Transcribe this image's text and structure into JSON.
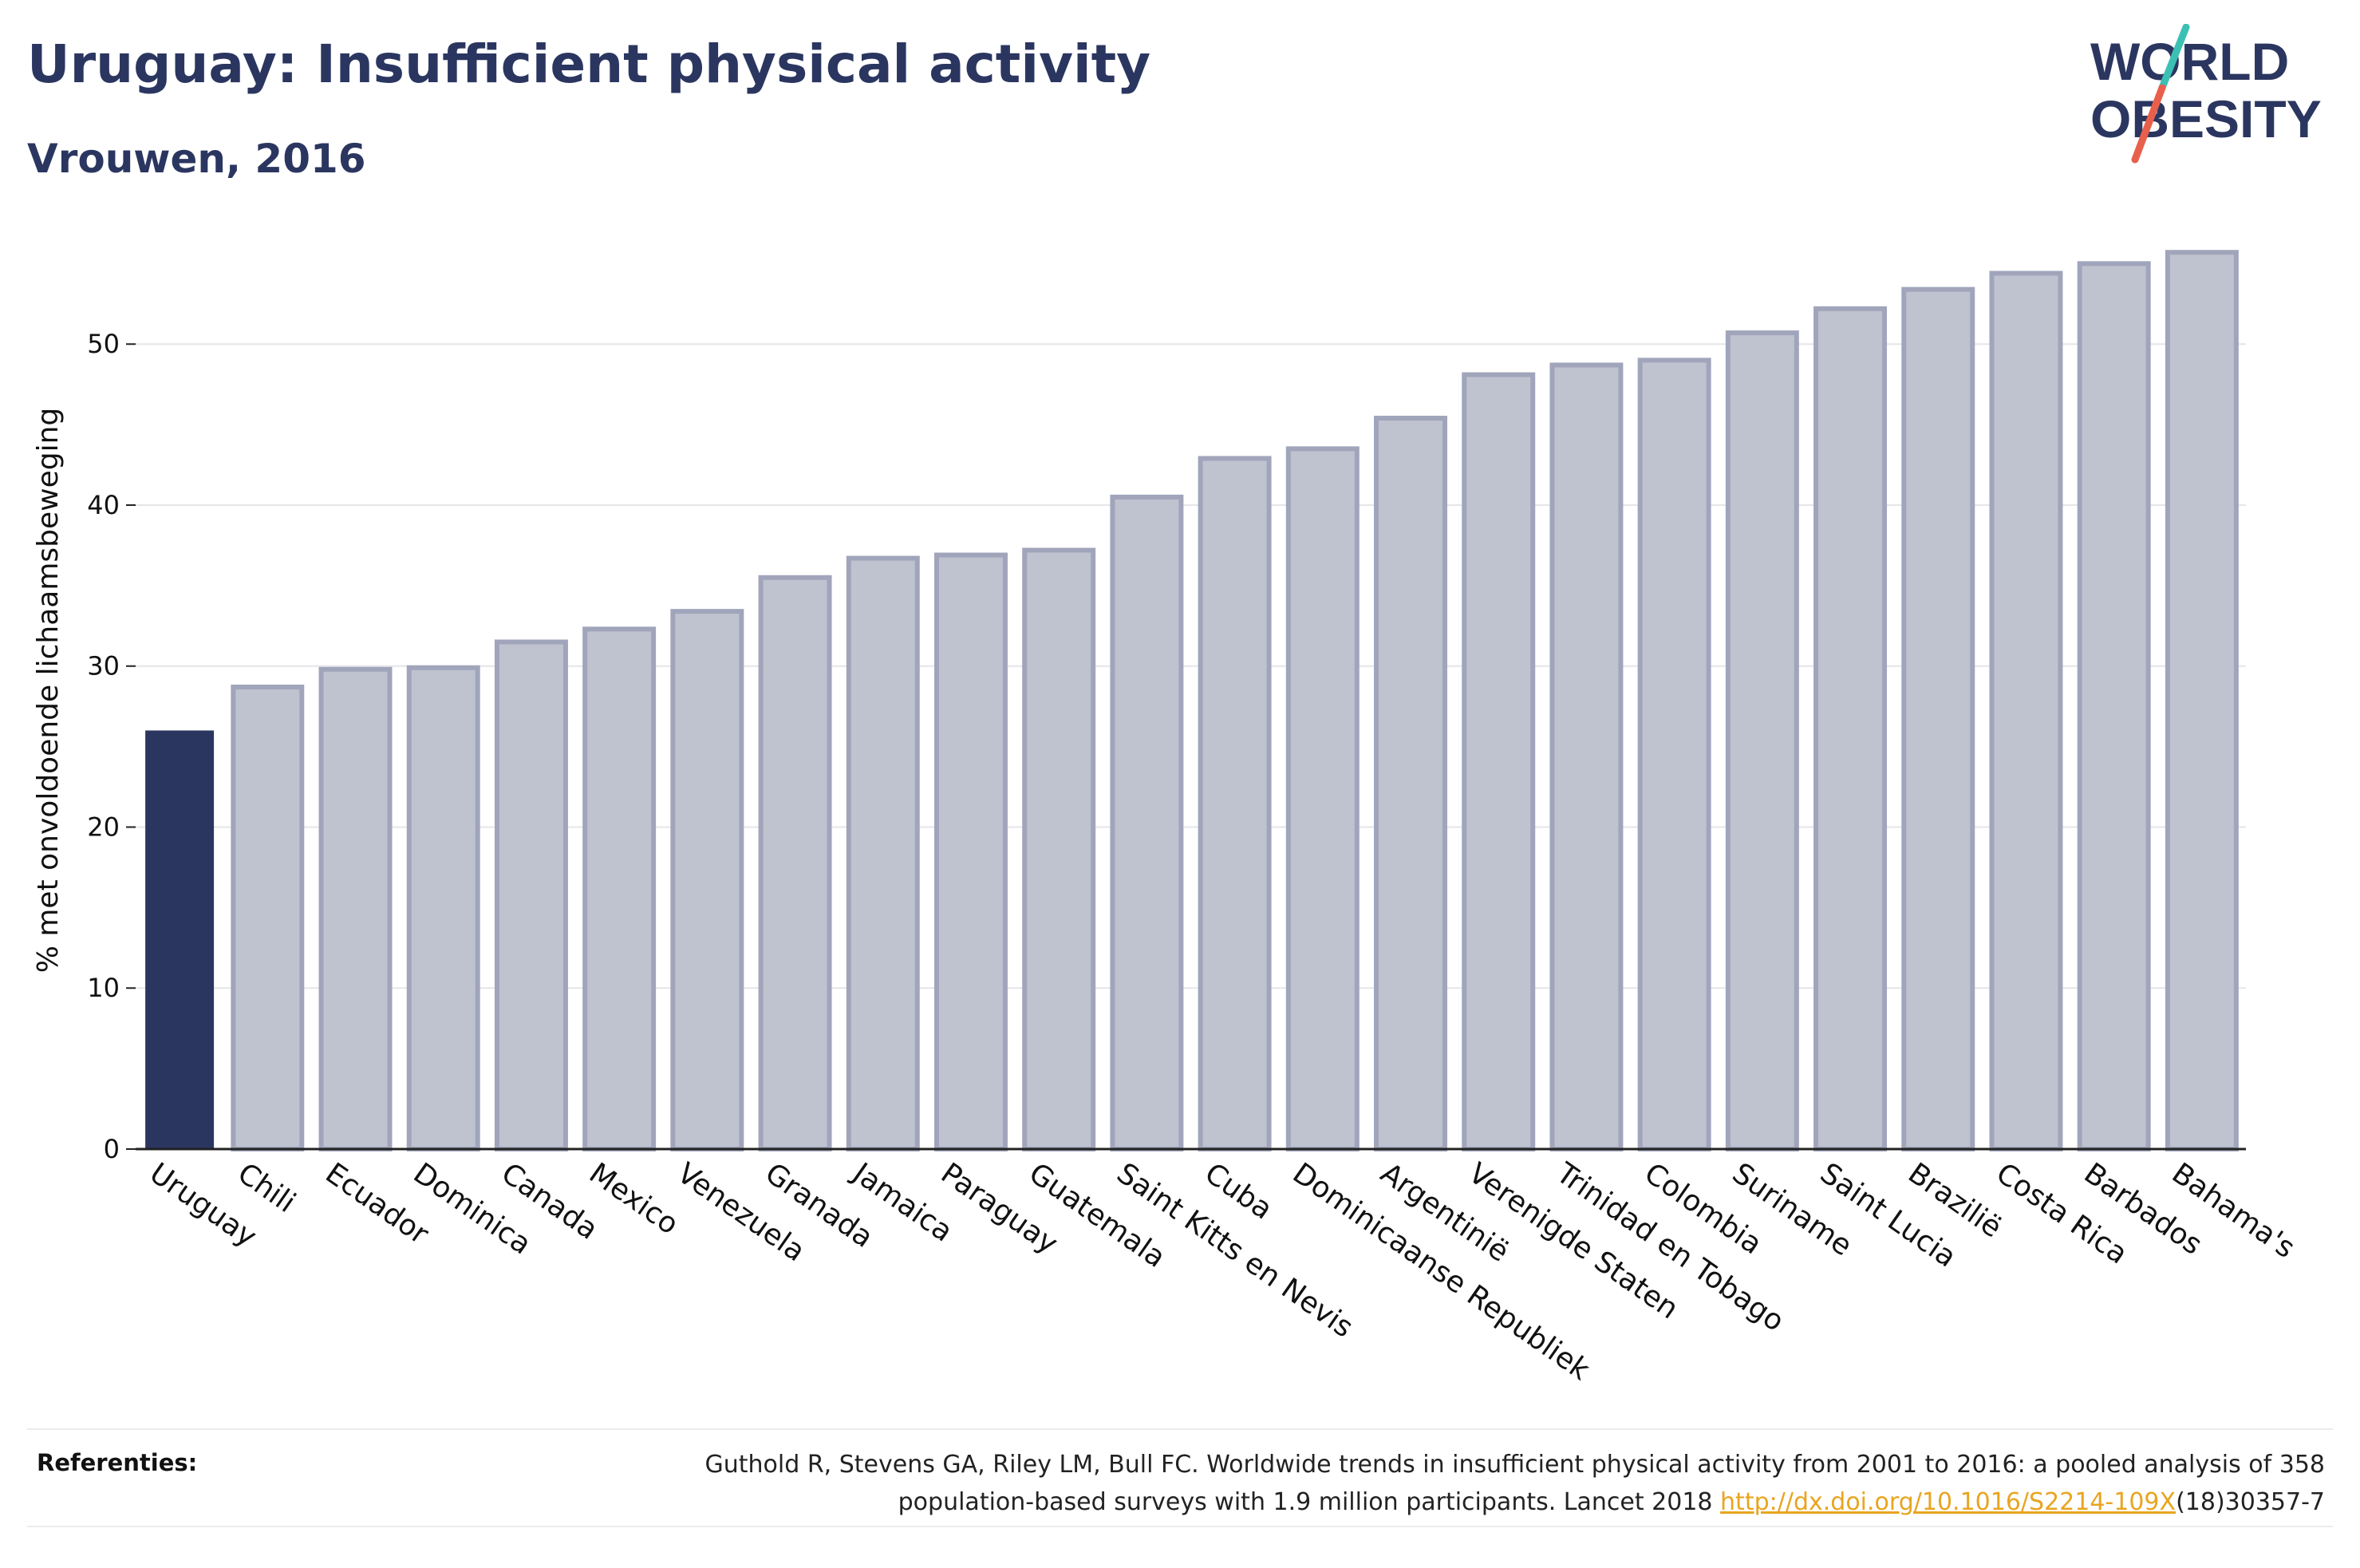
{
  "header": {
    "title": "Uruguay: Insufficient physical activity",
    "subtitle": "Vrouwen, 2016"
  },
  "logo": {
    "line1": "WORLD",
    "line2": "OBESITY",
    "slash_colors": [
      "#3cc0b4",
      "#e8604c"
    ],
    "text_color": "#2b3660"
  },
  "chart_data": {
    "type": "bar",
    "title": "Uruguay: Insufficient physical activity",
    "subtitle": "Vrouwen, 2016",
    "ylabel": "% met onvoldoende lichaamsbeweging",
    "xlabel": "",
    "ylim": [
      0,
      57
    ],
    "yticks": [
      0,
      10,
      20,
      30,
      40,
      50
    ],
    "grid": true,
    "highlight_category": "Uruguay",
    "colors": {
      "highlight": "#2b3660",
      "others_fill": "#bfc2cf",
      "others_stroke": "#a0a5bb"
    },
    "categories": [
      "Uruguay",
      "Chili",
      "Ecuador",
      "Dominica",
      "Canada",
      "Mexico",
      "Venezuela",
      "Granada",
      "Jamaica",
      "Paraguay",
      "Guatemala",
      "Saint Kitts en Nevis",
      "Cuba",
      "Dominicaanse Republiek",
      "Argentinië",
      "Verenigde Staten",
      "Trinidad en Tobago",
      "Colombia",
      "Suriname",
      "Saint Lucia",
      "Brazilië",
      "Costa Rica",
      "Barbados",
      "Bahama's"
    ],
    "values": [
      26.0,
      28.7,
      29.8,
      29.9,
      31.5,
      32.3,
      33.4,
      35.5,
      36.7,
      36.9,
      37.2,
      40.5,
      42.9,
      43.5,
      45.4,
      48.1,
      48.7,
      49.0,
      50.7,
      52.2,
      53.4,
      54.4,
      55.0,
      55.7
    ]
  },
  "references": {
    "label": "Referenties:",
    "text_line1": "Guthold R, Stevens GA, Riley LM, Bull FC. Worldwide trends in insufficient physical activity from 2001 to 2016: a pooled analysis of 358",
    "text_line2_before": "population-based surveys with 1.9 million participants. Lancet 2018 ",
    "link": "http://dx.doi.org/10.1016/S2214-109X",
    "text_line2_after": "(18)30357-7"
  }
}
